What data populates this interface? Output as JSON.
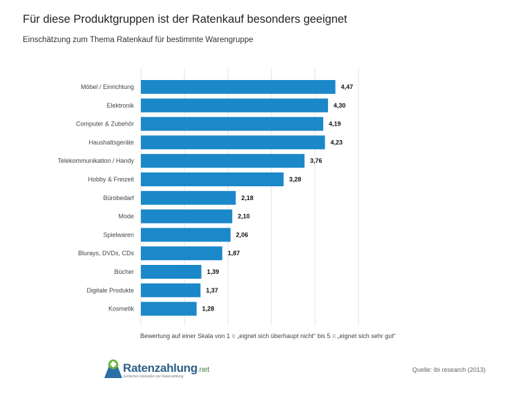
{
  "title": "Für diese Produktgruppen ist der Ratenkauf besonders geeignet",
  "subtitle": "Einschätzung zum Thema Ratenkauf für bestimmte Warengruppe",
  "source": "Quelle: ibi research (2013)",
  "logo": {
    "name": "Ratenzahlung",
    "suffix": ".net",
    "tagline": "Einfaches Einkaufen per Ratenzahlung"
  },
  "colors": {
    "bar": "#1a88c9",
    "grid": "#e3e3e3"
  },
  "chart_data": {
    "type": "bar",
    "orientation": "horizontal",
    "title": "Für diese Produktgruppen ist der Ratenkauf besonders geeignet",
    "subtitle": "Einschätzung zum Thema Ratenkauf für bestimmte Warengruppe",
    "xlabel": "Bewertung auf einer Skala von 1 = „eignet sich überhaupt nicht“ bis 5 = „eignet sich sehr gut“",
    "categories": [
      "Möbel / Einrichtung",
      "Elektronik",
      "Computer & Zubehör",
      "Haushaltsgeräte",
      "Telekommunikation / Handy",
      "Hobby & Freizeit",
      "Bürobedarf",
      "Mode",
      "Spielwaren",
      "Blurays, DVDs, CDs",
      "Bücher",
      "Digitale Produkte",
      "Kosmetik"
    ],
    "values": [
      4.47,
      4.3,
      4.19,
      4.23,
      3.76,
      3.28,
      2.18,
      2.1,
      2.06,
      1.87,
      1.39,
      1.37,
      1.28
    ],
    "value_labels": [
      "4,47",
      "4,30",
      "4,19",
      "4,23",
      "3,76",
      "3,28",
      "2,18",
      "2,10",
      "2,06",
      "1,87",
      "1,39",
      "1,37",
      "1,28"
    ],
    "xlim": [
      0,
      5
    ],
    "grid": true
  }
}
